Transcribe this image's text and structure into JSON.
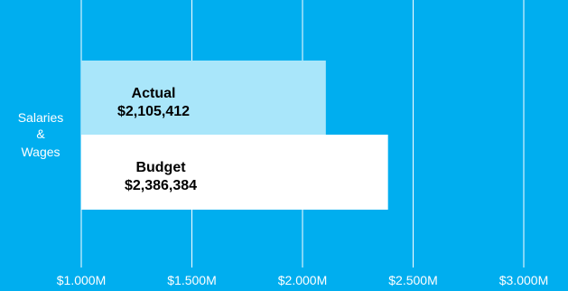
{
  "chart_data": {
    "type": "bar",
    "orientation": "horizontal",
    "categories": [
      "Salaries & Wages"
    ],
    "category_label_lines": [
      "Salaries",
      "&",
      "Wages"
    ],
    "series": [
      {
        "name": "Actual",
        "values": [
          2105412
        ],
        "value_label": "$2,105,412",
        "color": "#A9E6FA"
      },
      {
        "name": "Budget",
        "values": [
          2386384
        ],
        "value_label": "$2,386,384",
        "color": "#FFFFFF"
      }
    ],
    "xlim": [
      1000000,
      3000000
    ],
    "x_ticks": [
      1000000,
      1500000,
      2000000,
      2500000,
      3000000
    ],
    "x_tick_labels": [
      "$1.000M",
      "$1.500M",
      "$2.000M",
      "$2.500M",
      "$3.000M"
    ],
    "grid": true,
    "colors": {
      "background": "#00AEEF",
      "gridline": "#FFFFFF",
      "text": "#FFFFFF",
      "bar_text": "#000000"
    }
  }
}
